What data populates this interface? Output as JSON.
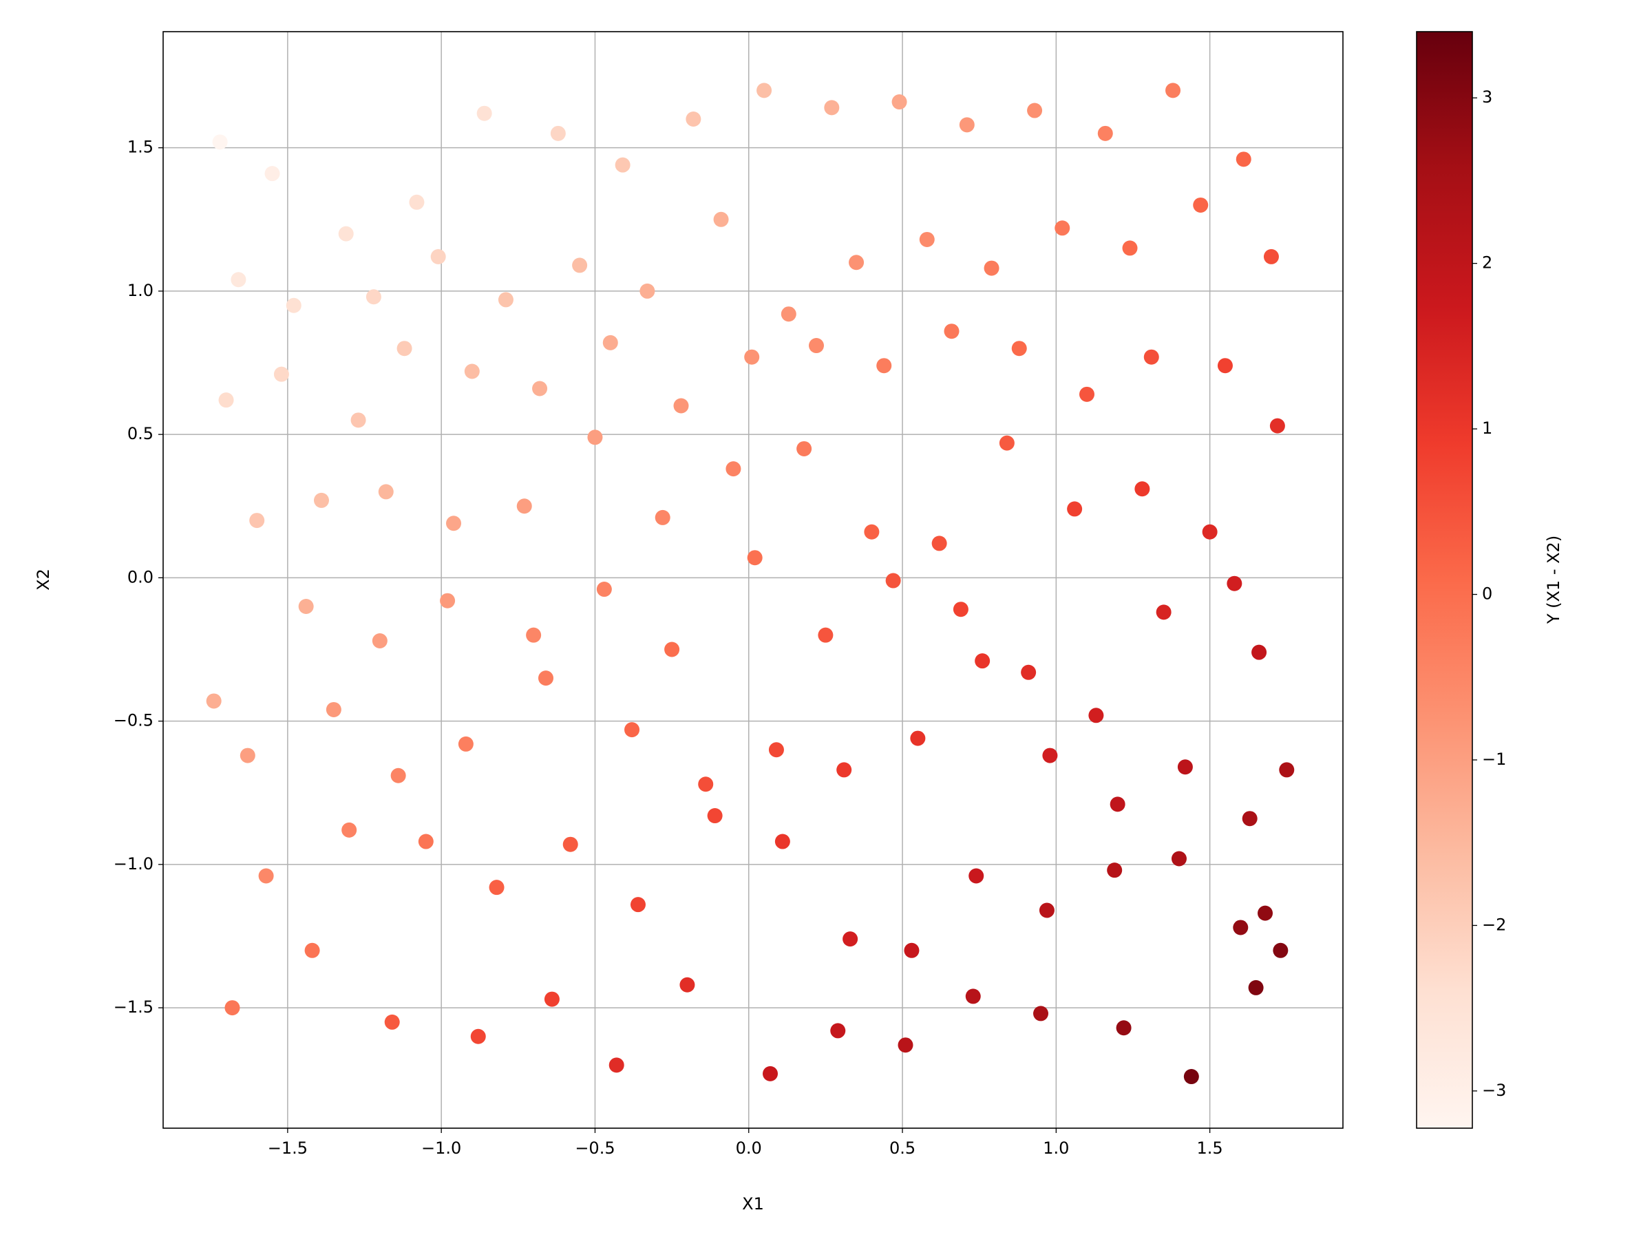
{
  "chart_data": {
    "type": "scatter",
    "x_label": "X1",
    "y_label": "X2",
    "colorbar_label": "Y (X1 - X2)",
    "xlim": [
      -1.905,
      1.933
    ],
    "ylim": [
      -1.92,
      1.905
    ],
    "clim": [
      -3.225,
      3.4
    ],
    "xticks": [
      {
        "value": -1.5,
        "label": "−1.5"
      },
      {
        "value": -1.0,
        "label": "−1.0"
      },
      {
        "value": -0.5,
        "label": "−0.5"
      },
      {
        "value": 0,
        "label": "0.0"
      },
      {
        "value": 0.5,
        "label": "0.5"
      },
      {
        "value": 1.0,
        "label": "1.0"
      },
      1.5
    ],
    "yticks": [
      {
        "value": -1.5,
        "label": "−1.5"
      },
      {
        "value": -1.0,
        "label": "−1.0"
      },
      {
        "value": -0.5,
        "label": "−0.5"
      },
      {
        "value": 0,
        "label": "0.0"
      },
      {
        "value": 0.5,
        "label": "0.5"
      },
      {
        "value": 1.0,
        "label": "1.0"
      },
      1.5
    ],
    "cticks": [
      {
        "value": -3,
        "label": "−3"
      },
      {
        "value": -2,
        "label": "−2"
      },
      {
        "value": -1,
        "label": "−1"
      },
      0,
      1,
      2,
      3
    ],
    "grid": true,
    "colormap": [
      "#fff5f0",
      "#fee0d2",
      "#fcbba1",
      "#fc9272",
      "#fb6a4a",
      "#ef3b2c",
      "#cb181d",
      "#a50f15",
      "#67000d"
    ],
    "x": [
      -1.72,
      -1.55,
      -1.31,
      -1.08,
      -0.86,
      -0.62,
      -0.41,
      -0.18,
      0.05,
      0.27,
      0.49,
      0.71,
      0.93,
      1.16,
      1.38,
      1.61,
      -1.66,
      -1.48,
      -1.22,
      -1.01,
      -0.79,
      -0.55,
      -0.33,
      -0.09,
      0.13,
      0.35,
      0.58,
      0.79,
      1.02,
      1.24,
      1.47,
      1.7,
      -1.7,
      -1.52,
      -1.27,
      -1.12,
      -0.9,
      -0.68,
      -0.45,
      -0.22,
      0.01,
      0.22,
      0.44,
      0.66,
      0.88,
      1.1,
      1.31,
      1.55,
      -1.6,
      -1.39,
      -1.18,
      -0.96,
      -0.73,
      -0.5,
      -0.28,
      -0.05,
      0.18,
      0.4,
      0.62,
      0.84,
      1.06,
      1.28,
      1.5,
      1.72,
      -1.74,
      -1.44,
      -1.2,
      -0.98,
      -0.7,
      -0.47,
      -0.25,
      0.02,
      0.25,
      0.47,
      0.69,
      0.91,
      1.13,
      1.35,
      1.58,
      1.66,
      -1.63,
      -1.35,
      -1.14,
      -0.92,
      -0.66,
      -0.38,
      -0.14,
      0.09,
      0.31,
      0.55,
      0.76,
      0.98,
      1.2,
      1.42,
      1.63,
      1.75,
      -1.57,
      -1.3,
      -1.05,
      -0.82,
      -0.58,
      -0.36,
      -0.11,
      0.11,
      0.33,
      0.53,
      0.74,
      0.97,
      1.19,
      1.4,
      1.6,
      1.68,
      -1.68,
      -1.42,
      -1.16,
      -0.88,
      -0.64,
      -0.43,
      -0.2,
      0.07,
      0.29,
      0.51,
      0.73,
      0.95,
      1.22,
      1.44,
      1.65,
      1.73
    ],
    "y": [
      1.52,
      1.41,
      1.2,
      1.31,
      1.62,
      1.55,
      1.44,
      1.6,
      1.7,
      1.64,
      1.66,
      1.58,
      1.63,
      1.55,
      1.7,
      1.46,
      1.04,
      0.95,
      0.98,
      1.12,
      0.97,
      1.09,
      1.0,
      1.25,
      0.92,
      1.1,
      1.18,
      1.08,
      1.22,
      1.15,
      1.3,
      1.12,
      0.62,
      0.71,
      0.55,
      0.8,
      0.72,
      0.66,
      0.82,
      0.6,
      0.77,
      0.81,
      0.74,
      0.86,
      0.8,
      0.64,
      0.77,
      0.74,
      0.2,
      0.27,
      0.3,
      0.19,
      0.25,
      0.49,
      0.21,
      0.38,
      0.45,
      0.16,
      0.12,
      0.47,
      0.24,
      0.31,
      0.16,
      0.53,
      -0.43,
      -0.1,
      -0.22,
      -0.08,
      -0.2,
      -0.04,
      -0.25,
      0.07,
      -0.2,
      -0.01,
      -0.11,
      -0.33,
      -0.48,
      -0.12,
      -0.02,
      -0.26,
      -0.62,
      -0.46,
      -0.69,
      -0.58,
      -0.35,
      -0.53,
      -0.72,
      -0.6,
      -0.67,
      -0.56,
      -0.29,
      -0.62,
      -0.79,
      -0.66,
      -0.84,
      -0.67,
      -1.04,
      -0.88,
      -0.92,
      -1.08,
      -0.93,
      -1.14,
      -0.83,
      -0.92,
      -1.26,
      -1.3,
      -1.04,
      -1.16,
      -1.02,
      -0.98,
      -1.22,
      -1.17,
      -1.5,
      -1.3,
      -1.55,
      -1.6,
      -1.47,
      -1.7,
      -1.42,
      -1.73,
      -1.58,
      -1.63,
      -1.46,
      -1.52,
      -1.57,
      -1.74,
      -1.43,
      -1.3
    ]
  }
}
